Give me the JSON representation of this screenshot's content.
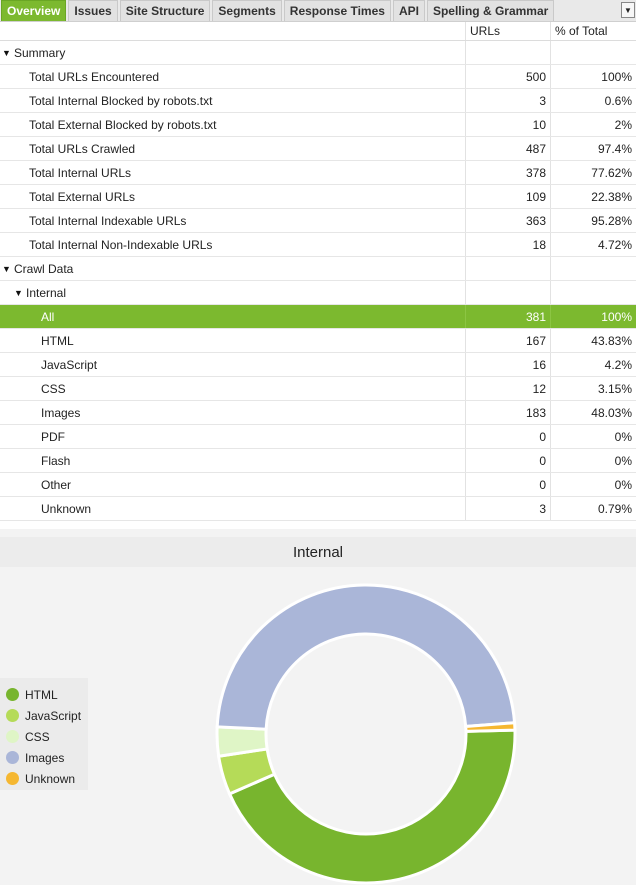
{
  "tabs": [
    {
      "label": "Overview",
      "active": true
    },
    {
      "label": "Issues",
      "active": false
    },
    {
      "label": "Site Structure",
      "active": false
    },
    {
      "label": "Segments",
      "active": false
    },
    {
      "label": "Response Times",
      "active": false
    },
    {
      "label": "API",
      "active": false
    },
    {
      "label": "Spelling & Grammar",
      "active": false
    }
  ],
  "table": {
    "headers": {
      "name": "",
      "urls": "URLs",
      "pct": "% of Total"
    },
    "rows": [
      {
        "type": "group",
        "name": "Summary",
        "urls": "",
        "pct": ""
      },
      {
        "type": "item",
        "name": "Total URLs Encountered",
        "urls": "500",
        "pct": "100%"
      },
      {
        "type": "item",
        "name": "Total Internal Blocked by robots.txt",
        "urls": "3",
        "pct": "0.6%"
      },
      {
        "type": "item",
        "name": "Total External Blocked by robots.txt",
        "urls": "10",
        "pct": "2%"
      },
      {
        "type": "item",
        "name": "Total URLs Crawled",
        "urls": "487",
        "pct": "97.4%"
      },
      {
        "type": "item",
        "name": "Total Internal URLs",
        "urls": "378",
        "pct": "77.62%"
      },
      {
        "type": "item",
        "name": "Total External URLs",
        "urls": "109",
        "pct": "22.38%"
      },
      {
        "type": "item",
        "name": "Total Internal Indexable URLs",
        "urls": "363",
        "pct": "95.28%"
      },
      {
        "type": "item",
        "name": "Total Internal Non-Indexable URLs",
        "urls": "18",
        "pct": "4.72%"
      },
      {
        "type": "group",
        "name": "Crawl Data",
        "urls": "",
        "pct": ""
      },
      {
        "type": "subgroup",
        "name": "Internal",
        "urls": "",
        "pct": ""
      },
      {
        "type": "sub",
        "name": "All",
        "urls": "381",
        "pct": "100%",
        "selected": true
      },
      {
        "type": "sub",
        "name": "HTML",
        "urls": "167",
        "pct": "43.83%"
      },
      {
        "type": "sub",
        "name": "JavaScript",
        "urls": "16",
        "pct": "4.2%"
      },
      {
        "type": "sub",
        "name": "CSS",
        "urls": "12",
        "pct": "3.15%"
      },
      {
        "type": "sub",
        "name": "Images",
        "urls": "183",
        "pct": "48.03%"
      },
      {
        "type": "sub",
        "name": "PDF",
        "urls": "0",
        "pct": "0%"
      },
      {
        "type": "sub",
        "name": "Flash",
        "urls": "0",
        "pct": "0%"
      },
      {
        "type": "sub",
        "name": "Other",
        "urls": "0",
        "pct": "0%"
      },
      {
        "type": "sub",
        "name": "Unknown",
        "urls": "3",
        "pct": "0.79%"
      }
    ]
  },
  "chart_data": {
    "type": "pie",
    "title": "Internal",
    "legend_position": "left",
    "series": [
      {
        "name": "HTML",
        "value": 167,
        "color": "#78b52e"
      },
      {
        "name": "JavaScript",
        "value": 16,
        "color": "#b5db58"
      },
      {
        "name": "CSS",
        "value": 12,
        "color": "#dff5c6"
      },
      {
        "name": "Images",
        "value": 183,
        "color": "#aab6d8"
      },
      {
        "name": "Unknown",
        "value": 3,
        "color": "#f5b731"
      }
    ]
  }
}
